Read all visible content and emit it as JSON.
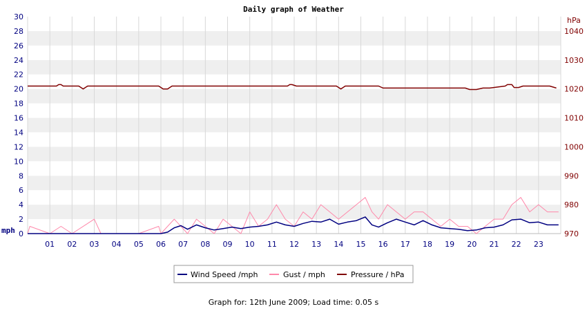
{
  "chart_data": {
    "type": "line",
    "title": "Daily graph of Weather",
    "left_axis": {
      "label": "mph",
      "range": [
        0,
        30
      ],
      "ticks": [
        0,
        2,
        4,
        6,
        8,
        10,
        12,
        14,
        16,
        18,
        20,
        22,
        24,
        26,
        28,
        30
      ],
      "color": "#000080"
    },
    "right_axis": {
      "label": "hPa",
      "range": [
        970,
        1045
      ],
      "ticks": [
        970,
        980,
        990,
        1000,
        1010,
        1020,
        1030,
        1040
      ],
      "color": "#800000"
    },
    "x_axis": {
      "label": "",
      "range": [
        0,
        24
      ],
      "ticks": [
        "01",
        "02",
        "03",
        "04",
        "05",
        "06",
        "07",
        "08",
        "09",
        "10",
        "11",
        "12",
        "13",
        "14",
        "15",
        "16",
        "17",
        "18",
        "19",
        "20",
        "21",
        "22",
        "23"
      ]
    },
    "grid": true,
    "legend_position": "bottom-center",
    "series": [
      {
        "name": "Wind Speed /mph",
        "axis": "left",
        "color": "#000080",
        "x": [
          0,
          1,
          2,
          3,
          4,
          5,
          6,
          6.3,
          6.6,
          6.9,
          7.2,
          7.6,
          8,
          8.4,
          8.8,
          9.2,
          9.6,
          10,
          10.4,
          10.8,
          11.2,
          11.6,
          12,
          12.4,
          12.8,
          13.2,
          13.6,
          14,
          14.4,
          14.8,
          15.2,
          15.5,
          15.8,
          16.2,
          16.6,
          17,
          17.4,
          17.8,
          18.2,
          18.6,
          19,
          19.4,
          19.8,
          20.2,
          20.6,
          21,
          21.4,
          21.8,
          22.2,
          22.6,
          23,
          23.4,
          23.9
        ],
        "values": [
          0,
          0,
          0,
          0,
          0,
          0,
          0,
          0.2,
          0.8,
          1.1,
          0.6,
          1.2,
          0.8,
          0.5,
          0.7,
          0.9,
          0.7,
          0.9,
          1.0,
          1.2,
          1.6,
          1.2,
          1.0,
          1.4,
          1.7,
          1.6,
          2.0,
          1.3,
          1.6,
          1.8,
          2.3,
          1.2,
          0.9,
          1.5,
          2.0,
          1.6,
          1.2,
          1.8,
          1.2,
          0.8,
          0.7,
          0.6,
          0.4,
          0.5,
          0.8,
          0.9,
          1.2,
          1.9,
          2.0,
          1.5,
          1.6,
          1.2,
          1.2
        ]
      },
      {
        "name": "Gust / mph",
        "axis": "left",
        "color": "#ff88aa",
        "x": [
          0,
          0.1,
          1,
          1.5,
          2,
          3,
          3.3,
          4,
          5,
          5.9,
          6,
          6.3,
          6.6,
          6.9,
          7.2,
          7.6,
          8,
          8.4,
          8.8,
          9.2,
          9.6,
          10,
          10.4,
          10.8,
          11.2,
          11.6,
          12,
          12.4,
          12.8,
          13.2,
          13.6,
          14,
          14.4,
          14.8,
          15.2,
          15.5,
          15.8,
          16.2,
          16.6,
          17,
          17.4,
          17.8,
          18.2,
          18.6,
          19,
          19.4,
          19.8,
          20.2,
          20.6,
          21,
          21.4,
          21.8,
          22.2,
          22.6,
          23,
          23.4,
          23.9
        ],
        "values": [
          0,
          1,
          0,
          1,
          0,
          2,
          0,
          0,
          0,
          1,
          0,
          1,
          2,
          1,
          0,
          2,
          1,
          0,
          2,
          1,
          0,
          3,
          1,
          2,
          4,
          2,
          1,
          3,
          2,
          4,
          3,
          2,
          3,
          4,
          5,
          3,
          2,
          4,
          3,
          2,
          3,
          3,
          2,
          1,
          2,
          1,
          1,
          0,
          1,
          2,
          2,
          4,
          5,
          3,
          4,
          3,
          3
        ]
      },
      {
        "name": "Pressure / hPa",
        "axis": "right",
        "color": "#800000",
        "x": [
          0,
          1.3,
          1.4,
          1.5,
          1.6,
          2.3,
          2.5,
          2.7,
          5.9,
          6.1,
          6.3,
          6.5,
          11.7,
          11.8,
          11.9,
          12.1,
          13.9,
          14.1,
          14.3,
          15.8,
          16,
          16.2,
          19.7,
          19.9,
          20.2,
          20.5,
          20.8,
          21.5,
          21.6,
          21.8,
          21.9,
          22.1,
          22.3,
          23.5,
          23.8
        ],
        "values": [
          1021,
          1021,
          1021.5,
          1021.5,
          1021,
          1021,
          1020,
          1021,
          1021,
          1020,
          1020,
          1021,
          1021,
          1021.5,
          1021.5,
          1021,
          1021,
          1020,
          1021,
          1021,
          1020.3,
          1020.3,
          1020.3,
          1019.8,
          1019.8,
          1020.3,
          1020.3,
          1021,
          1021.5,
          1021.5,
          1020.5,
          1020.5,
          1021,
          1021,
          1020.3
        ]
      }
    ]
  },
  "legend": {
    "wind": "Wind Speed /mph",
    "gust": "Gust / mph",
    "pressure": "Pressure / hPa"
  },
  "footer": "Graph for: 12th June 2009; Load time: 0.05 s"
}
